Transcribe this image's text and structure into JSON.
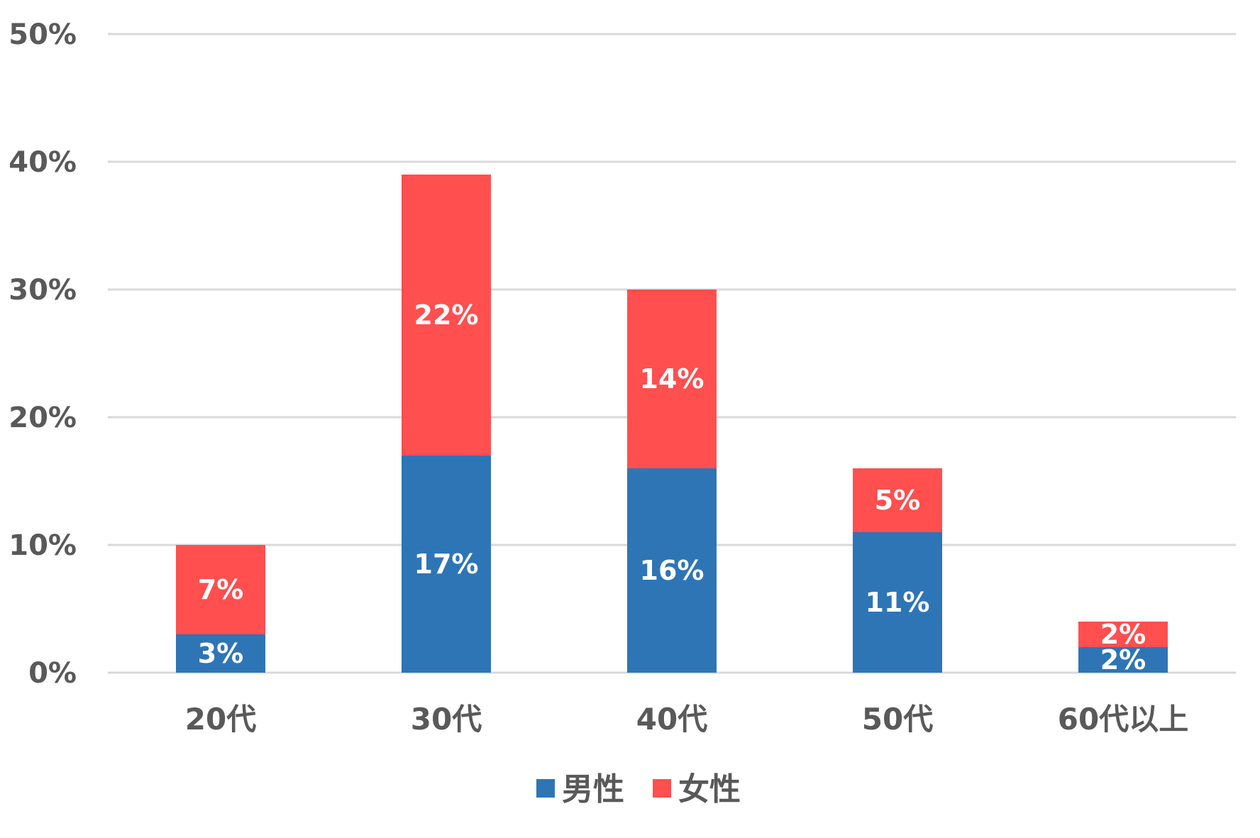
{
  "chart_data": {
    "type": "bar",
    "stacked": true,
    "categories": [
      "20代",
      "30代",
      "40代",
      "50代",
      "60代以上"
    ],
    "series": [
      {
        "name": "男性",
        "values": [
          3,
          17,
          16,
          11,
          2
        ],
        "labels": [
          "3%",
          "17%",
          "16%",
          "11%",
          "2%"
        ],
        "color": "#2e75b6"
      },
      {
        "name": "女性",
        "values": [
          7,
          22,
          14,
          5,
          2
        ],
        "labels": [
          "7%",
          "22%",
          "14%",
          "5%",
          "2%"
        ],
        "color": "#ff4f4f"
      }
    ],
    "ylim": [
      0,
      50
    ],
    "yticks": [
      0,
      10,
      20,
      30,
      40,
      50
    ],
    "ytick_labels": [
      "0%",
      "10%",
      "20%",
      "30%",
      "40%",
      "50%"
    ],
    "grid": true,
    "legend_position": "bottom-center"
  }
}
